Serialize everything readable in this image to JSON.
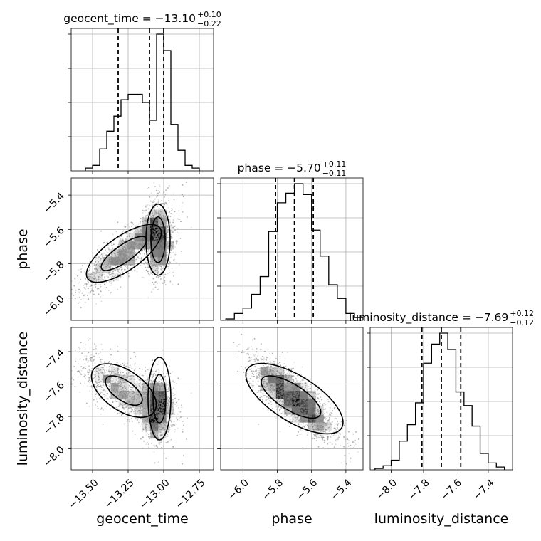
{
  "chart_data": {
    "type": "corner",
    "parameters": [
      "geocent_time",
      "phase",
      "luminosity_distance"
    ],
    "axis_labels": {
      "geocent_time": "geocent_time",
      "phase": "phase",
      "luminosity_distance": "luminosity_distance"
    },
    "ranges": {
      "geocent_time": [
        -13.65,
        -12.65
      ],
      "phase": [
        -6.13,
        -5.3
      ],
      "luminosity_distance": [
        -8.13,
        -7.25
      ]
    },
    "ticks": {
      "geocent_time": {
        "values": [
          -13.5,
          -13.25,
          -13.0,
          -12.75
        ],
        "labels": [
          "−13.50",
          "−13.25",
          "−13.00",
          "−12.75"
        ]
      },
      "phase": {
        "values": [
          -6.0,
          -5.8,
          -5.6,
          -5.4
        ],
        "labels": [
          "−6.0",
          "−5.8",
          "−5.6",
          "−5.4"
        ]
      },
      "luminosity_distance": {
        "values": [
          -8.0,
          -7.8,
          -7.6,
          -7.4
        ],
        "labels": [
          "−8.0",
          "−7.8",
          "−7.6",
          "−7.4"
        ]
      }
    },
    "titles": [
      {
        "param": "geocent_time",
        "main": "geocent_time = −13.10",
        "plus": "+0.10",
        "minus": "−0.22"
      },
      {
        "param": "phase",
        "main": "phase = −5.70",
        "plus": "+0.11",
        "minus": "−0.11"
      },
      {
        "param": "luminosity_distance",
        "main": "luminosity_distance = −7.69",
        "plus": "+0.12",
        "minus": "−0.12"
      }
    ],
    "quantiles": {
      "geocent_time": [
        -13.32,
        -13.1,
        -13.0
      ],
      "phase": [
        -5.81,
        -5.7,
        -5.59
      ],
      "luminosity_distance": [
        -7.81,
        -7.69,
        -7.57
      ]
    },
    "histograms": {
      "geocent_time": {
        "edges": [
          -13.55,
          -13.5,
          -13.45,
          -13.4,
          -13.35,
          -13.3,
          -13.25,
          -13.2,
          -13.15,
          -13.1,
          -13.05,
          -13.0,
          -12.95,
          -12.9,
          -12.85,
          -12.8,
          -12.75
        ],
        "counts": [
          0.02,
          0.04,
          0.16,
          0.29,
          0.4,
          0.52,
          0.56,
          0.56,
          0.5,
          0.37,
          1.0,
          0.88,
          0.34,
          0.15,
          0.04,
          0.02
        ]
      },
      "phase": {
        "edges": [
          -6.1,
          -6.05,
          -6.0,
          -5.95,
          -5.9,
          -5.85,
          -5.8,
          -5.75,
          -5.7,
          -5.65,
          -5.6,
          -5.55,
          -5.5,
          -5.45,
          -5.4,
          -5.35,
          -5.3
        ],
        "counts": [
          0.01,
          0.05,
          0.09,
          0.19,
          0.32,
          0.65,
          0.86,
          0.93,
          1.0,
          0.92,
          0.66,
          0.47,
          0.26,
          0.16,
          0.05,
          0.02
        ]
      },
      "luminosity_distance": {
        "edges": [
          -8.1,
          -8.05,
          -8.0,
          -7.95,
          -7.9,
          -7.85,
          -7.8,
          -7.75,
          -7.7,
          -7.65,
          -7.6,
          -7.55,
          -7.5,
          -7.45,
          -7.4,
          -7.35,
          -7.3
        ],
        "counts": [
          0.01,
          0.03,
          0.07,
          0.21,
          0.33,
          0.49,
          0.78,
          0.92,
          1.0,
          0.88,
          0.57,
          0.47,
          0.32,
          0.12,
          0.05,
          0.02
        ]
      }
    },
    "clusters": [
      {
        "x": -13.28,
        "y": -5.74,
        "dx": 0.16,
        "dy": 0.13,
        "weight": 0.55
      },
      {
        "x": -13.04,
        "y": -5.66,
        "dx": 0.05,
        "dy": 0.12,
        "weight": 0.45
      }
    ],
    "grid": true,
    "point_color": "#808080",
    "line_color": "#000000"
  }
}
